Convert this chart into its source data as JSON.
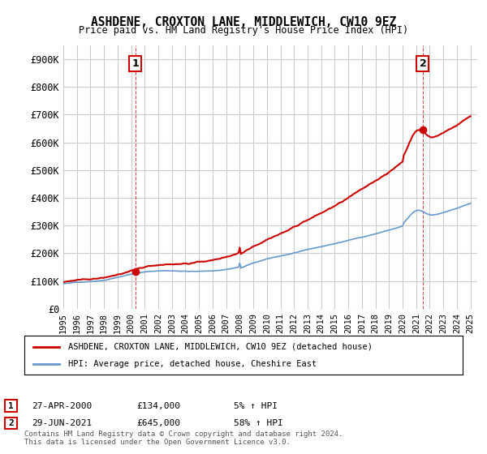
{
  "title": "ASHDENE, CROXTON LANE, MIDDLEWICH, CW10 9EZ",
  "subtitle": "Price paid vs. HM Land Registry's House Price Index (HPI)",
  "ylabel_ticks": [
    "£0",
    "£100K",
    "£200K",
    "£300K",
    "£400K",
    "£500K",
    "£600K",
    "£700K",
    "£800K",
    "£900K"
  ],
  "ytick_values": [
    0,
    100000,
    200000,
    300000,
    400000,
    500000,
    600000,
    700000,
    800000,
    900000
  ],
  "ylim": [
    0,
    950000
  ],
  "xlim_start": 1995.0,
  "xlim_end": 2025.5,
  "background_color": "#ffffff",
  "plot_bg_color": "#ffffff",
  "grid_color": "#cccccc",
  "sale1_year": 2000.32,
  "sale1_price": 134000,
  "sale2_year": 2021.49,
  "sale2_price": 645000,
  "sale1_label": "1",
  "sale2_label": "2",
  "legend_line1": "ASHDENE, CROXTON LANE, MIDDLEWICH, CW10 9EZ (detached house)",
  "legend_line2": "HPI: Average price, detached house, Cheshire East",
  "table_row1": [
    "1",
    "27-APR-2000",
    "£134,000",
    "5% ↑ HPI"
  ],
  "table_row2": [
    "2",
    "29-JUN-2021",
    "£645,000",
    "58% ↑ HPI"
  ],
  "footer": "Contains HM Land Registry data © Crown copyright and database right 2024.\nThis data is licensed under the Open Government Licence v3.0.",
  "hpi_color": "#6699cc",
  "sale_line_color": "#cc0000",
  "vline_color": "#cc0000",
  "marker_color": "#cc0000",
  "title_color": "#000000",
  "xtick_years": [
    1995,
    1996,
    1997,
    1998,
    1999,
    2000,
    2001,
    2002,
    2003,
    2004,
    2005,
    2006,
    2007,
    2008,
    2009,
    2010,
    2011,
    2012,
    2013,
    2014,
    2015,
    2016,
    2017,
    2018,
    2019,
    2020,
    2021,
    2022,
    2023,
    2024,
    2025
  ]
}
